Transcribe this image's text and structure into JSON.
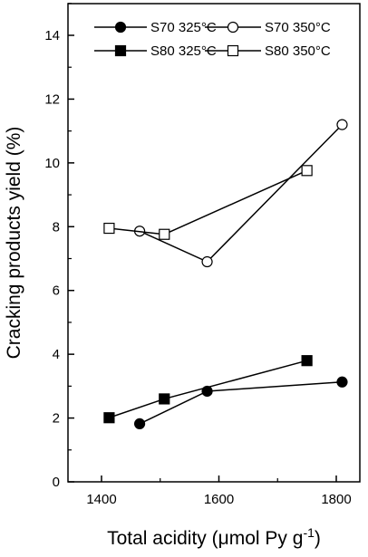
{
  "chart_data": {
    "type": "line",
    "xlabel": "Total acidity (μmol Py g",
    "xlabel_sup": "-1",
    "xlabel_close": ")",
    "ylabel": "Cracking products yield (%)",
    "xlim": [
      1350,
      1860
    ],
    "ylim": [
      0,
      15
    ],
    "x_ticks": [
      1400,
      1600,
      1800
    ],
    "y_ticks": [
      0,
      2,
      4,
      6,
      8,
      10,
      12,
      14
    ],
    "legend_position": "top",
    "series": [
      {
        "name": "S70 325°C",
        "marker": "circle",
        "filled": true,
        "x": [
          1465,
          1580,
          1810
        ],
        "y": [
          1.82,
          2.84,
          3.13
        ]
      },
      {
        "name": "S70 350°C",
        "marker": "circle",
        "filled": false,
        "x": [
          1465,
          1580,
          1810
        ],
        "y": [
          7.86,
          6.9,
          11.2
        ]
      },
      {
        "name": "S80 325°C",
        "marker": "square",
        "filled": true,
        "x": [
          1413,
          1507,
          1750
        ],
        "y": [
          2.01,
          2.6,
          3.8
        ]
      },
      {
        "name": "S80 350°C",
        "marker": "square",
        "filled": false,
        "x": [
          1413,
          1507,
          1750
        ],
        "y": [
          7.95,
          7.76,
          9.76
        ]
      }
    ]
  }
}
